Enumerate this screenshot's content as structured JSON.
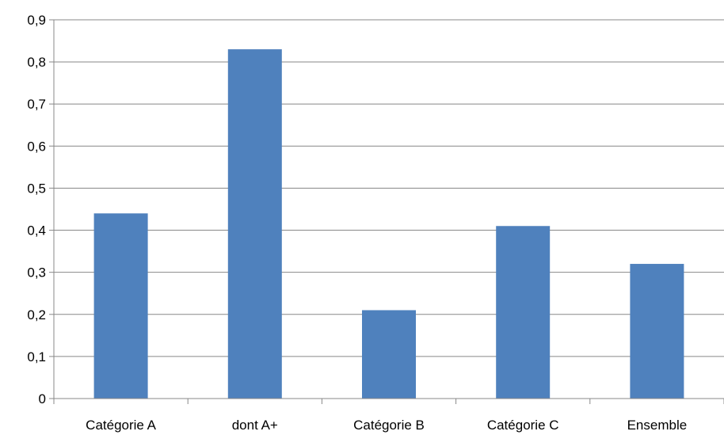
{
  "chart_data": {
    "type": "bar",
    "categories": [
      "Catégorie A",
      "dont A+",
      "Catégorie B",
      "Catégorie C",
      "Ensemble"
    ],
    "values": [
      0.44,
      0.83,
      0.21,
      0.41,
      0.32
    ],
    "yticks": [
      "0",
      "0,1",
      "0,2",
      "0,3",
      "0,4",
      "0,5",
      "0,6",
      "0,7",
      "0,8",
      "0,9"
    ],
    "ylim": [
      0,
      0.9
    ],
    "grid": true,
    "legend": "none",
    "bar_color": "#4F81BD",
    "grid_color": "#888888"
  }
}
